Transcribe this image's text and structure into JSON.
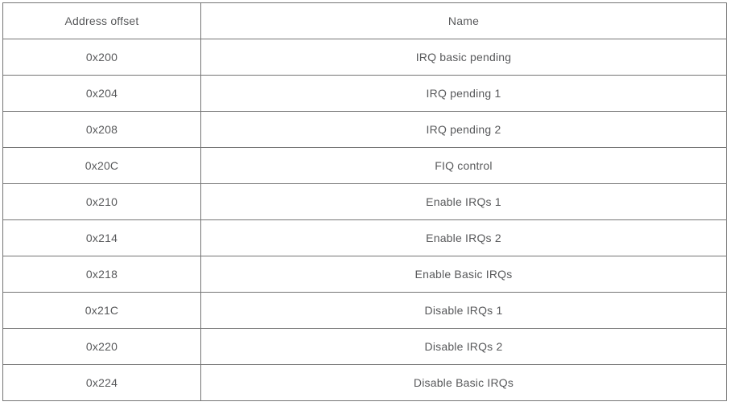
{
  "table": {
    "columns": [
      "Address offset",
      "Name"
    ],
    "rows": [
      {
        "offset": "0x200",
        "name": "IRQ basic pending"
      },
      {
        "offset": "0x204",
        "name": "IRQ pending 1"
      },
      {
        "offset": "0x208",
        "name": "IRQ pending 2"
      },
      {
        "offset": "0x20C",
        "name": "FIQ control"
      },
      {
        "offset": "0x210",
        "name": "Enable IRQs 1"
      },
      {
        "offset": "0x214",
        "name": "Enable IRQs 2"
      },
      {
        "offset": "0x218",
        "name": "Enable Basic IRQs"
      },
      {
        "offset": "0x21C",
        "name": "Disable IRQs 1"
      },
      {
        "offset": "0x220",
        "name": "Disable IRQs 2"
      },
      {
        "offset": "0x224",
        "name": "Disable Basic IRQs"
      }
    ],
    "colors": {
      "border": "#757575",
      "text": "#58595b",
      "background": "#ffffff"
    }
  }
}
